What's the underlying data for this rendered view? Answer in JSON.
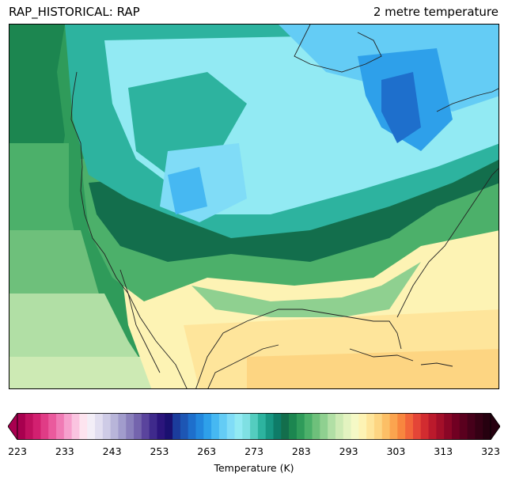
{
  "title_left": "RAP_HISTORICAL: RAP",
  "title_right": "2 metre temperature",
  "colorbar": {
    "label": "Temperature (K)",
    "min": 223,
    "max": 323,
    "extend": "both",
    "ticks": [
      "223",
      "233",
      "243",
      "253",
      "263",
      "273",
      "283",
      "293",
      "303",
      "313",
      "323"
    ],
    "colors": [
      "#a8004f",
      "#c0105f",
      "#d22070",
      "#e03c86",
      "#ea5a9d",
      "#f07bb5",
      "#f6a0cd",
      "#fac4e0",
      "#fde4ef",
      "#f3eef7",
      "#e2def0",
      "#cecbe6",
      "#b8b5d9",
      "#a19ccc",
      "#8a80bc",
      "#7464ad",
      "#5a449d",
      "#3f2a8c",
      "#2b157c",
      "#1a1070",
      "#1b3c9c",
      "#1d56b4",
      "#1e6fcc",
      "#2387dd",
      "#2ea0ea",
      "#46b8f2",
      "#64ccf5",
      "#80dcf7",
      "#92eaf3",
      "#7fe0e3",
      "#54cdbf",
      "#2db39f",
      "#189783",
      "#0e7c68",
      "#136e4c",
      "#1c8650",
      "#2f9b5a",
      "#4cb06a",
      "#6ec07b",
      "#8fd090",
      "#b1dfa5",
      "#cdeab4",
      "#e3f3c0",
      "#f5f9c6",
      "#fdf3b4",
      "#fee59b",
      "#fdd582",
      "#fcbf66",
      "#fba44f",
      "#f8863f",
      "#f2653a",
      "#e44537",
      "#d22c30",
      "#bb1a2c",
      "#a30f29",
      "#8a0626",
      "#710022",
      "#5a001e",
      "#46001a",
      "#350014",
      "#26000f"
    ]
  },
  "map_colors": {
    "ocean_pacific_far": "#2f9b5a",
    "ocean_pacific_mid": "#4cb06a",
    "ocean_pacific_near": "#6ec07b",
    "ocean_pacific_south": "#b1dfa5",
    "south_warm": "#fdf3b4",
    "south_warmer": "#fee59b",
    "north_cold": "#92eaf3",
    "arctic_cold": "#46b8f2",
    "deep_cold": "#1e6fcc",
    "teal": "#2db39f",
    "dark_teal": "#136e4c",
    "coastline": "#222222"
  }
}
